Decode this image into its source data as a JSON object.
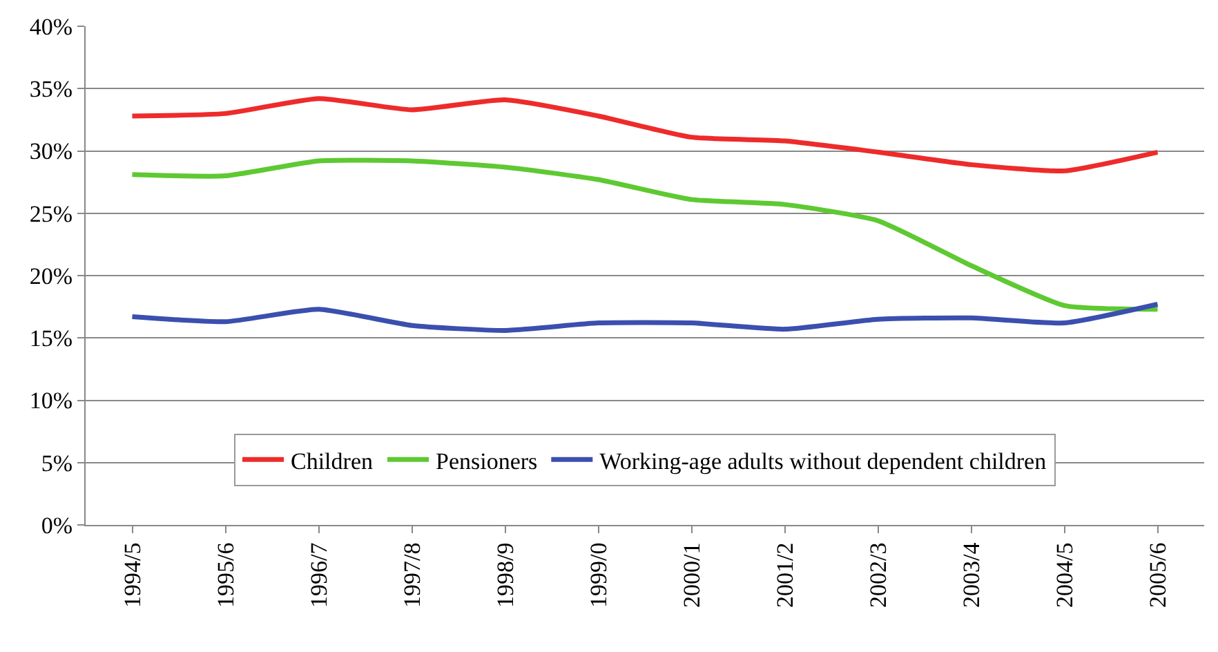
{
  "chart_data": {
    "type": "line",
    "categories": [
      "1994/5",
      "1995/6",
      "1996/7",
      "1997/8",
      "1998/9",
      "1999/0",
      "2000/1",
      "2001/2",
      "2002/3",
      "2003/4",
      "2004/5",
      "2005/6"
    ],
    "series": [
      {
        "name": "Children",
        "color": "#ee2b2b",
        "values": [
          32.8,
          33.0,
          34.2,
          33.3,
          34.1,
          32.8,
          31.1,
          30.8,
          29.9,
          28.9,
          28.4,
          29.9
        ]
      },
      {
        "name": "Pensioners",
        "color": "#5ec932",
        "values": [
          28.1,
          28.0,
          29.2,
          29.2,
          28.7,
          27.7,
          26.1,
          25.7,
          24.4,
          20.8,
          17.6,
          17.3
        ]
      },
      {
        "name": "Working-age adults without dependent children",
        "color": "#3b4fae",
        "values": [
          16.7,
          16.3,
          17.3,
          16.0,
          15.6,
          16.2,
          16.2,
          15.7,
          16.5,
          16.6,
          16.2,
          17.7
        ]
      }
    ],
    "ylim": [
      0,
      40
    ],
    "yticks": [
      {
        "value": 0,
        "label": "0%"
      },
      {
        "value": 5,
        "label": "5%"
      },
      {
        "value": 10,
        "label": "10%"
      },
      {
        "value": 15,
        "label": "15%"
      },
      {
        "value": 20,
        "label": "20%"
      },
      {
        "value": 25,
        "label": "25%"
      },
      {
        "value": 30,
        "label": "30%"
      },
      {
        "value": 35,
        "label": "35%"
      },
      {
        "value": 40,
        "label": "40%"
      }
    ],
    "grid": "y",
    "legend": "bottom",
    "marker": "none",
    "line_style": "solid"
  }
}
